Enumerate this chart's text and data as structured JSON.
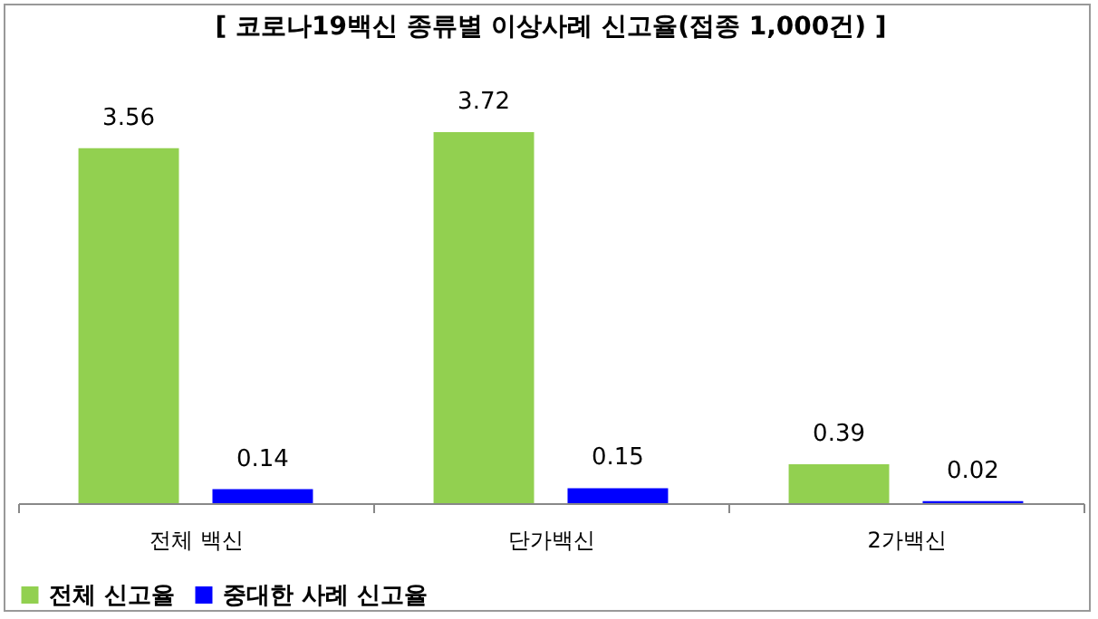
{
  "chart_data": {
    "type": "bar",
    "title": "[ 코로나19백신 종류별 이상사례 신고율(접종 1,000건) ]",
    "categories": [
      "전체 백신",
      "단가백신",
      "2가백신"
    ],
    "series": [
      {
        "name": "전체  신고율",
        "color": "#92d050",
        "values": [
          3.56,
          3.72,
          0.39
        ]
      },
      {
        "name": "중대한 사례 신고율",
        "color": "#0000ff",
        "values": [
          0.14,
          0.15,
          0.02
        ]
      }
    ],
    "data_labels": true,
    "legend": "bottom",
    "tick_labels": "x"
  }
}
